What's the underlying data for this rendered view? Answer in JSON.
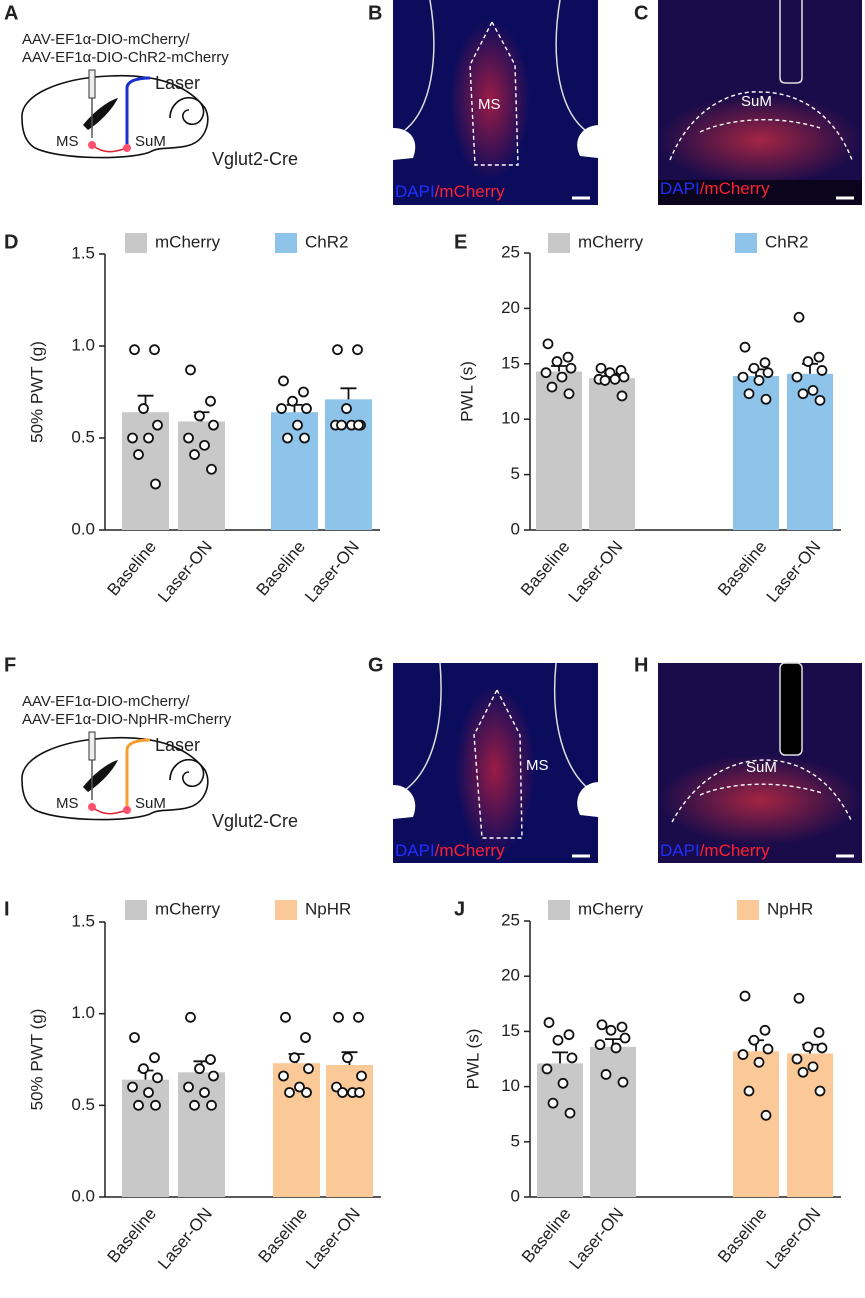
{
  "panels": {
    "letters": [
      "A",
      "B",
      "C",
      "D",
      "E",
      "F",
      "G",
      "H",
      "I",
      "J"
    ],
    "diagrams": [
      {
        "vector_line1": "AAV-EF1α-DIO-mCherry/",
        "vector_line2": "AAV-EF1α-DIO-ChR2-mCherry",
        "laser": "Laser",
        "region1": "MS",
        "region2": "SuM",
        "mouse": "Vglut2-Cre"
      },
      {
        "vector_line1": "AAV-EF1α-DIO-mCherry/",
        "vector_line2": "AAV-EF1α-DIO-NpHR-mCherry",
        "laser": "Laser",
        "region1": "MS",
        "region2": "SuM",
        "mouse": "Vglut2-Cre"
      }
    ],
    "images": [
      {
        "region": "MS",
        "stain1": "DAPI",
        "stain2": "/mCherry"
      },
      {
        "region": "SuM",
        "stain1": "DAPI",
        "stain2": "/mCherry"
      },
      {
        "region": "MS",
        "stain1": "DAPI",
        "stain2": "/mCherry"
      },
      {
        "region": "SuM",
        "stain1": "DAPI",
        "stain2": "/mCherry"
      }
    ]
  },
  "chart_data": [
    {
      "type": "bar",
      "ylabel": "50% PWT (g)",
      "categories": [
        "Baseline",
        "Laser-ON",
        "Baseline",
        "Laser-ON"
      ],
      "series": [
        {
          "name": "mCherry",
          "color": "#c8c8c8",
          "values": [
            0.64,
            0.59,
            null,
            null
          ],
          "errors": [
            0.09,
            0.05,
            null,
            null
          ],
          "points": [
            [
              0.98,
              0.98,
              0.66,
              0.57,
              0.5,
              0.5,
              0.41,
              0.25
            ],
            [
              0.87,
              0.7,
              0.62,
              0.57,
              0.5,
              0.46,
              0.41,
              0.33
            ],
            null,
            null
          ]
        },
        {
          "name": "ChR2",
          "color": "#8ec4ea",
          "values": [
            null,
            null,
            0.64,
            0.71
          ],
          "errors": [
            null,
            null,
            0.04,
            0.06
          ],
          "points": [
            null,
            null,
            [
              0.81,
              0.75,
              0.7,
              0.66,
              0.66,
              0.57,
              0.5,
              0.5
            ],
            [
              0.98,
              0.98,
              0.66,
              0.57,
              0.57,
              0.57,
              0.57,
              0.57
            ]
          ]
        }
      ],
      "ylim": [
        0,
        1.5
      ],
      "yticks": [
        {
          "value": 0,
          "label": "0.0"
        },
        0.5,
        {
          "value": 1,
          "label": "1.0"
        },
        1.5
      ]
    },
    {
      "type": "bar",
      "ylabel": "PWL (s)",
      "categories": [
        "Baseline",
        "Laser-ON",
        "Baseline",
        "Laser-ON"
      ],
      "series": [
        {
          "name": "mCherry",
          "color": "#c8c8c8",
          "values": [
            14.3,
            13.7,
            null,
            null
          ],
          "errors": [
            0.5,
            0.4,
            null,
            null
          ],
          "points": [
            [
              16.8,
              15.6,
              15.2,
              14.6,
              14.2,
              13.8,
              12.9,
              12.3
            ],
            [
              14.6,
              14.4,
              14.2,
              13.8,
              13.6,
              13.6,
              13.5,
              12.1
            ],
            null,
            null
          ]
        },
        {
          "name": "ChR2",
          "color": "#8ec4ea",
          "values": [
            null,
            null,
            13.9,
            14.1
          ],
          "errors": [
            null,
            null,
            0.6,
            0.9
          ],
          "points": [
            null,
            null,
            [
              16.5,
              15.1,
              14.6,
              14.2,
              13.8,
              13.5,
              12.3,
              11.8
            ],
            [
              19.2,
              15.6,
              15.2,
              14.4,
              13.8,
              12.6,
              12.3,
              11.7
            ]
          ]
        }
      ],
      "ylim": [
        0,
        25
      ],
      "yticks": [
        0,
        5,
        10,
        15,
        20,
        25
      ]
    },
    {
      "type": "bar",
      "ylabel": "50% PWT (g)",
      "categories": [
        "Baseline",
        "Laser-ON",
        "Baseline",
        "Laser-ON"
      ],
      "series": [
        {
          "name": "mCherry",
          "color": "#c8c8c8",
          "values": [
            0.64,
            0.68,
            null,
            null
          ],
          "errors": [
            0.05,
            0.06,
            null,
            null
          ],
          "points": [
            [
              0.87,
              0.76,
              0.7,
              0.65,
              0.6,
              0.57,
              0.5,
              0.5
            ],
            [
              0.98,
              0.75,
              0.7,
              0.66,
              0.6,
              0.57,
              0.5,
              0.5
            ],
            null,
            null
          ]
        },
        {
          "name": "NpHR",
          "color": "#fbc998",
          "values": [
            null,
            null,
            0.73,
            0.72
          ],
          "errors": [
            null,
            null,
            0.05,
            0.07
          ],
          "points": [
            null,
            null,
            [
              0.98,
              0.87,
              0.76,
              0.7,
              0.66,
              0.6,
              0.57,
              0.57
            ],
            [
              0.98,
              0.98,
              0.76,
              0.66,
              0.6,
              0.57,
              0.57,
              0.57
            ]
          ]
        }
      ],
      "ylim": [
        0,
        1.5
      ],
      "yticks": [
        {
          "value": 0,
          "label": "0.0"
        },
        0.5,
        {
          "value": 1,
          "label": "1.0"
        },
        1.5
      ]
    },
    {
      "type": "bar",
      "ylabel": "PWL (s)",
      "categories": [
        "Baseline",
        "Laser-ON",
        "Baseline",
        "Laser-ON"
      ],
      "series": [
        {
          "name": "mCherry",
          "color": "#c8c8c8",
          "values": [
            12.1,
            13.6,
            null,
            null
          ],
          "errors": [
            1.0,
            0.7,
            null,
            null
          ],
          "points": [
            [
              15.8,
              14.7,
              14.2,
              12.6,
              11.6,
              10.3,
              8.5,
              7.6
            ],
            [
              15.6,
              15.4,
              15.1,
              14.4,
              13.8,
              13.5,
              11.1,
              10.4
            ],
            null,
            null
          ]
        },
        {
          "name": "NpHR",
          "color": "#fbc998",
          "values": [
            null,
            null,
            13.2,
            13.0
          ],
          "errors": [
            null,
            null,
            1.0,
            0.8
          ],
          "points": [
            null,
            null,
            [
              18.2,
              15.1,
              14.2,
              13.4,
              12.9,
              12.2,
              9.6,
              7.4
            ],
            [
              18.0,
              14.9,
              13.6,
              13.5,
              12.5,
              11.8,
              11.3,
              9.6
            ]
          ]
        }
      ],
      "ylim": [
        0,
        25
      ],
      "yticks": [
        0,
        5,
        10,
        15,
        20,
        25
      ]
    }
  ]
}
